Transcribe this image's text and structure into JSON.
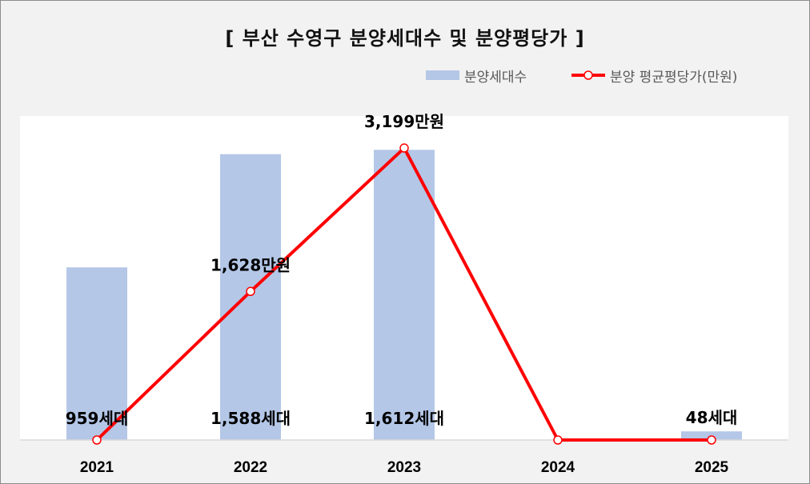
{
  "chart_data": {
    "type": "bar",
    "title": "[ 부산 수영구 분양세대수 및 분양평당가 ]",
    "categories": [
      "2021",
      "2022",
      "2023",
      "2024",
      "2025"
    ],
    "series": [
      {
        "name": "분양세대수",
        "type": "bar",
        "values": [
          959,
          1588,
          1612,
          0,
          48
        ],
        "labels": [
          "959세대",
          "1,588세대",
          "1,612세대",
          "",
          "48세대"
        ],
        "color": "#b4c7e7"
      },
      {
        "name": "분양 평균평당가(만원)",
        "type": "line",
        "values": [
          0,
          1628,
          3199,
          0,
          0
        ],
        "labels": [
          "",
          "1,628만원",
          "3,199만원",
          "",
          ""
        ],
        "color": "#ff0000"
      }
    ],
    "bar_axis_max": 1800,
    "line_axis_max": 3550,
    "legend": "top-right",
    "grid": false
  }
}
